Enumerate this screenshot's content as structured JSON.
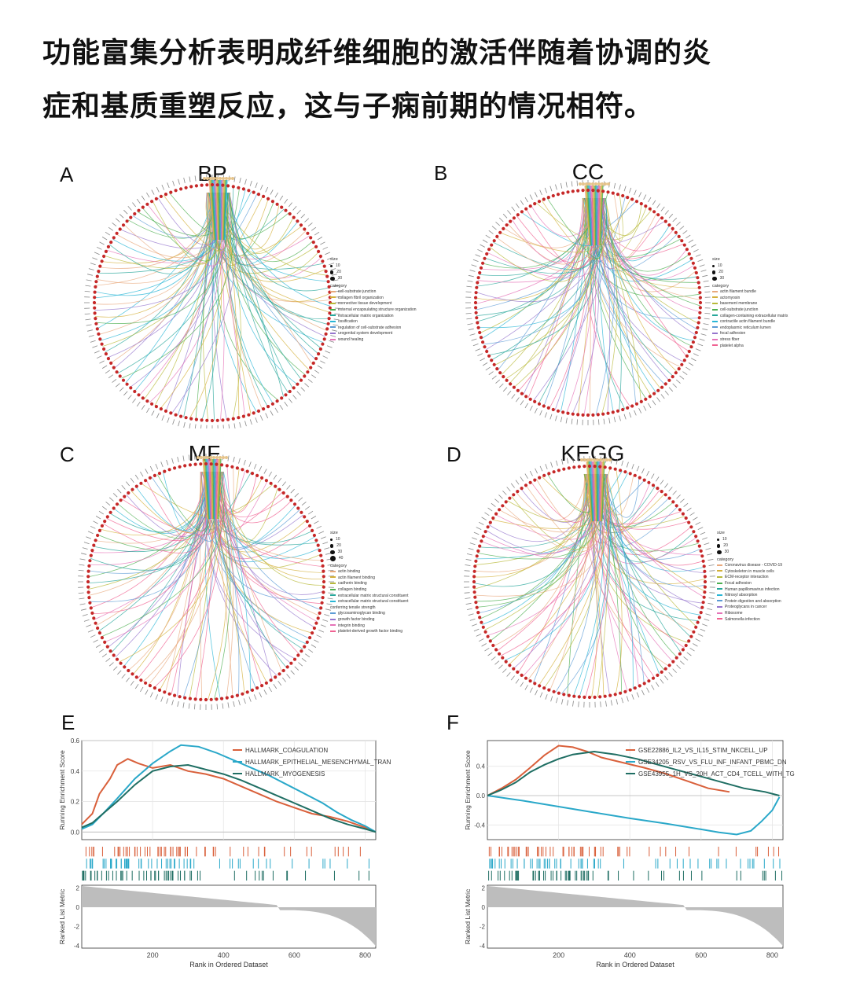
{
  "headline": {
    "line1": "功能富集分析表明成纤维细胞的激活伴随着协调的炎",
    "line2": "症和基质重塑反应，这与子痫前期的情况相符。"
  },
  "circos": [
    {
      "letter": "A",
      "title": "BP",
      "size_title": "size",
      "size_values": [
        "10",
        "20",
        "30"
      ],
      "category_title": "category",
      "categories": [
        {
          "label": "cell-substrate junction",
          "color": "#e8a87c"
        },
        {
          "label": "collagen fibril organization",
          "color": "#d4b03a"
        },
        {
          "label": "connective tissue development",
          "color": "#b8b93a"
        },
        {
          "label": "external encapsulating structure organization",
          "color": "#4caf50"
        },
        {
          "label": "extracellular matrix organization",
          "color": "#26a69a"
        },
        {
          "label": "ossification",
          "color": "#29b6d6"
        },
        {
          "label": "regulation of cell-substrate adhesion",
          "color": "#5b9bd5"
        },
        {
          "label": "urogenital system development",
          "color": "#9575cd"
        },
        {
          "label": "wound healing",
          "color": "#e573b8"
        }
      ]
    },
    {
      "letter": "B",
      "title": "CC",
      "size_title": "size",
      "size_values": [
        "10",
        "20",
        "30"
      ],
      "category_title": "category",
      "categories": [
        {
          "label": "actin filament bundle",
          "color": "#e8a87c"
        },
        {
          "label": "actomyosin",
          "color": "#d4b03a"
        },
        {
          "label": "basement membrane",
          "color": "#b8b93a"
        },
        {
          "label": "cell-substrate junction",
          "color": "#4caf50"
        },
        {
          "label": "collagen-containing extracellular matrix",
          "color": "#26a69a"
        },
        {
          "label": "contractile actin filament bundle",
          "color": "#29b6d6"
        },
        {
          "label": "endoplasmic reticulum lumen",
          "color": "#5b9bd5"
        },
        {
          "label": "focal adhesion",
          "color": "#9575cd"
        },
        {
          "label": "stress fiber",
          "color": "#e573b8"
        },
        {
          "label": "platelet alpha",
          "color": "#f06292"
        }
      ]
    },
    {
      "letter": "C",
      "title": "MF",
      "size_title": "size",
      "size_values": [
        "10",
        "20",
        "30",
        "40"
      ],
      "category_title": "category",
      "categories": [
        {
          "label": "actin binding",
          "color": "#e8a87c"
        },
        {
          "label": "actin filament binding",
          "color": "#d4b03a"
        },
        {
          "label": "cadherin binding",
          "color": "#b8b93a"
        },
        {
          "label": "collagen binding",
          "color": "#4caf50"
        },
        {
          "label": "extracellular matrix structural constituent",
          "color": "#26a69a"
        },
        {
          "label": "extracellular matrix structural constituent conferring tensile strength",
          "color": "#29b6d6"
        },
        {
          "label": "glycosaminoglycan binding",
          "color": "#5b9bd5"
        },
        {
          "label": "growth factor binding",
          "color": "#9575cd"
        },
        {
          "label": "integrin binding",
          "color": "#e573b8"
        },
        {
          "label": "platelet-derived growth factor binding",
          "color": "#f06292"
        }
      ]
    },
    {
      "letter": "D",
      "title": "KEGG",
      "size_title": "size",
      "size_values": [
        "10",
        "20",
        "30"
      ],
      "category_title": "category",
      "categories": [
        {
          "label": "Coronavirus disease - COVID-19",
          "color": "#e8a87c"
        },
        {
          "label": "Cytoskeleton in muscle cells",
          "color": "#d4b03a"
        },
        {
          "label": "ECM-receptor interaction",
          "color": "#b8b93a"
        },
        {
          "label": "Focal adhesion",
          "color": "#4caf50"
        },
        {
          "label": "Human papillomavirus infection",
          "color": "#26a69a"
        },
        {
          "label": "Nitrosyl absorption",
          "color": "#29b6d6"
        },
        {
          "label": "Protein digestion and absorption",
          "color": "#5b9bd5"
        },
        {
          "label": "Proteoglycans in cancer",
          "color": "#9575cd"
        },
        {
          "label": "Ribosome",
          "color": "#e573b8"
        },
        {
          "label": "Salmonella infection",
          "color": "#f06292"
        }
      ]
    }
  ],
  "gsea": [
    {
      "letter": "E",
      "ylabel_top": "Running Enrichment Score",
      "ylabel_bottom": "Ranked List Metric",
      "xlabel": "Rank in Ordered Dataset",
      "es_ticks": [
        "0.0",
        "0.2",
        "0.4",
        "0.6"
      ],
      "es_ylim": [
        -0.05,
        0.6
      ],
      "metric_ticks": [
        "2",
        "0",
        "-2",
        "-4"
      ],
      "x_ticks": [
        "200",
        "400",
        "600",
        "800"
      ],
      "series": [
        {
          "name": "HALLMARK_COAGULATION",
          "color": "#d9603b",
          "x": [
            0,
            30,
            50,
            80,
            100,
            130,
            160,
            200,
            250,
            300,
            350,
            400,
            450,
            500,
            550,
            600,
            650,
            700,
            750,
            800,
            830
          ],
          "y": [
            0.05,
            0.12,
            0.25,
            0.35,
            0.44,
            0.48,
            0.45,
            0.42,
            0.44,
            0.4,
            0.38,
            0.35,
            0.3,
            0.25,
            0.2,
            0.16,
            0.12,
            0.1,
            0.07,
            0.03,
            0.0
          ]
        },
        {
          "name": "HALLMARK_EPITHELIAL_MESENCHYMAL_TRAN",
          "color": "#2aa8c9",
          "x": [
            0,
            30,
            60,
            100,
            150,
            200,
            250,
            280,
            330,
            380,
            430,
            480,
            530,
            580,
            630,
            680,
            720,
            760,
            800,
            830
          ],
          "y": [
            0.02,
            0.05,
            0.12,
            0.22,
            0.35,
            0.45,
            0.53,
            0.57,
            0.56,
            0.52,
            0.47,
            0.42,
            0.37,
            0.31,
            0.25,
            0.19,
            0.13,
            0.08,
            0.04,
            0.0
          ]
        },
        {
          "name": "HALLMARK_MYOGENESIS",
          "color": "#1f6e63",
          "x": [
            0,
            30,
            60,
            100,
            150,
            200,
            250,
            300,
            350,
            400,
            450,
            500,
            550,
            600,
            650,
            700,
            750,
            800,
            830
          ],
          "y": [
            0.03,
            0.06,
            0.12,
            0.2,
            0.31,
            0.4,
            0.43,
            0.44,
            0.41,
            0.38,
            0.34,
            0.29,
            0.24,
            0.19,
            0.14,
            0.09,
            0.05,
            0.02,
            0.0
          ]
        }
      ]
    },
    {
      "letter": "F",
      "ylabel_top": "Running Enrichment Score",
      "ylabel_bottom": "Ranked List Metric",
      "xlabel": "Rank in Ordered Dataset",
      "es_ticks": [
        "-0.4",
        "0.0",
        "0.4"
      ],
      "es_ylim": [
        -0.6,
        0.75
      ],
      "metric_ticks": [
        "2",
        "0",
        "-2",
        "-4"
      ],
      "x_ticks": [
        "200",
        "400",
        "600",
        "800"
      ],
      "series": [
        {
          "name": "GSE22886_IL2_VS_IL15_STIM_NKCELL_UP",
          "color": "#d9603b",
          "x": [
            0,
            40,
            80,
            120,
            160,
            200,
            240,
            280,
            320,
            380,
            440,
            500,
            560,
            620,
            680
          ],
          "y": [
            0.0,
            0.1,
            0.22,
            0.38,
            0.55,
            0.68,
            0.66,
            0.6,
            0.52,
            0.45,
            0.38,
            0.3,
            0.2,
            0.1,
            0.05
          ]
        },
        {
          "name": "GSE34205_RSV_VS_FLU_INF_INFANT_PBMC_DN",
          "color": "#2aa8c9",
          "x": [
            0,
            100,
            200,
            300,
            400,
            500,
            600,
            650,
            700,
            740,
            770,
            800,
            820
          ],
          "y": [
            0.0,
            -0.07,
            -0.15,
            -0.23,
            -0.31,
            -0.38,
            -0.46,
            -0.5,
            -0.53,
            -0.48,
            -0.35,
            -0.2,
            -0.02
          ]
        },
        {
          "name": "GSE43955_1H_VS_20H_ACT_CD4_TCELL_WITH_TG",
          "color": "#1f6e63",
          "x": [
            0,
            40,
            80,
            120,
            160,
            200,
            240,
            300,
            360,
            420,
            480,
            540,
            600,
            660,
            720,
            780,
            820
          ],
          "y": [
            0.0,
            0.08,
            0.18,
            0.32,
            0.42,
            0.5,
            0.56,
            0.6,
            0.56,
            0.5,
            0.42,
            0.34,
            0.26,
            0.18,
            0.1,
            0.05,
            0.0
          ]
        }
      ]
    }
  ],
  "chart_data": [
    {
      "type": "line",
      "title": "E",
      "xlabel": "Rank in Ordered Dataset",
      "ylabel": "Running Enrichment Score",
      "ylim": [
        -0.05,
        0.6
      ],
      "xlim": [
        0,
        830
      ],
      "series": [
        {
          "name": "HALLMARK_COAGULATION"
        },
        {
          "name": "HALLMARK_EPITHELIAL_MESENCHYMAL_TRAN"
        },
        {
          "name": "HALLMARK_MYOGENESIS"
        }
      ]
    },
    {
      "type": "line",
      "title": "F",
      "xlabel": "Rank in Ordered Dataset",
      "ylabel": "Running Enrichment Score",
      "ylim": [
        -0.6,
        0.75
      ],
      "xlim": [
        0,
        830
      ],
      "series": [
        {
          "name": "GSE22886_IL2_VS_IL15_STIM_NKCELL_UP"
        },
        {
          "name": "GSE34205_RSV_VS_FLU_INF_INFANT_PBMC_DN"
        },
        {
          "name": "GSE43955_1H_VS_20H_ACT_CD4_TCELL_WITH_TG"
        }
      ]
    }
  ]
}
